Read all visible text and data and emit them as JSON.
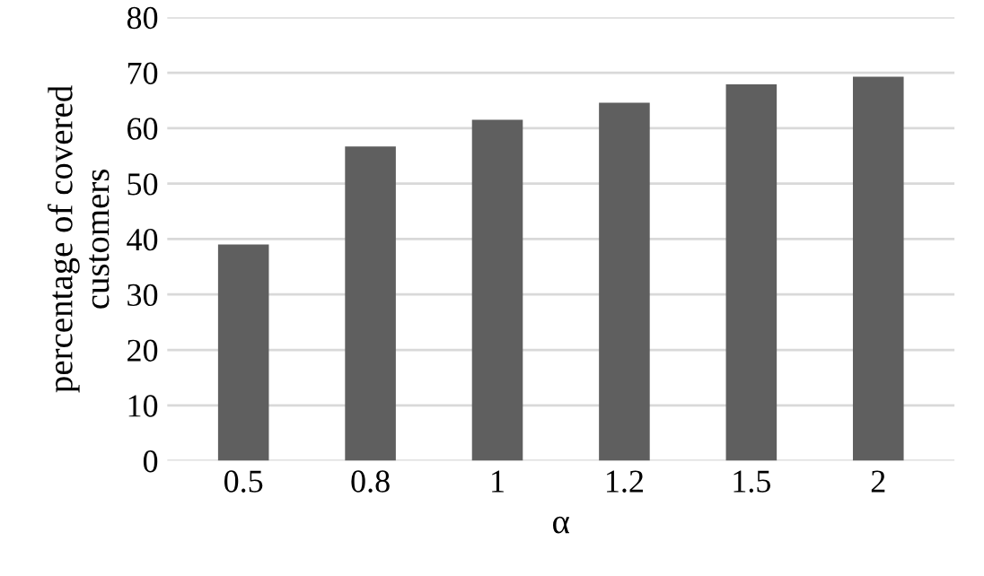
{
  "chart_data": {
    "type": "bar",
    "xlabel": "α",
    "ylabel": "percentage of covered\ncustomers",
    "categories": [
      "0.5",
      "0.8",
      "1",
      "1.2",
      "1.5",
      "2"
    ],
    "values": [
      39,
      56.7,
      61.5,
      64.6,
      67.9,
      69.3
    ],
    "color": "#5f5f5f",
    "ylim": [
      0,
      80
    ],
    "yticks": [
      0,
      10,
      20,
      30,
      40,
      50,
      60,
      70,
      80
    ],
    "grid": "y",
    "legend": false
  }
}
